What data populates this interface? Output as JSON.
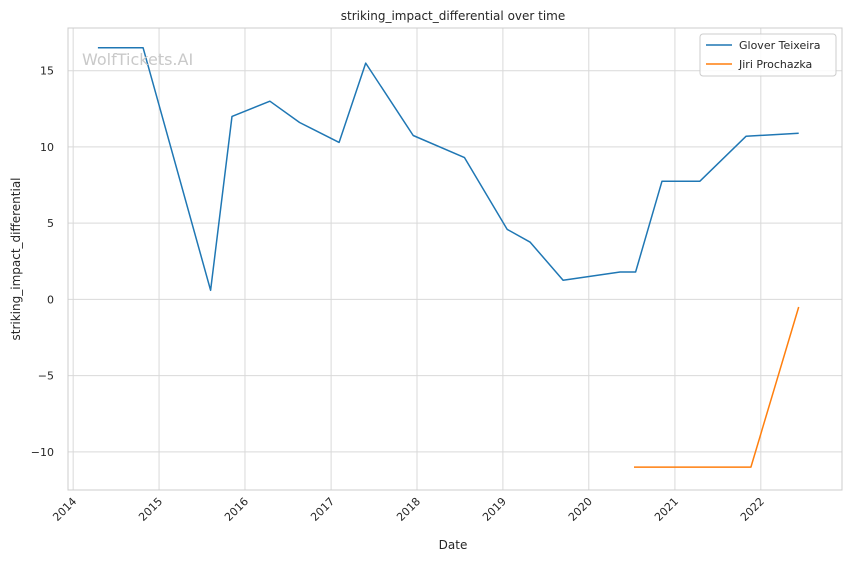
{
  "chart_data": {
    "type": "line",
    "title": "striking_impact_differential over time",
    "xlabel": "Date",
    "ylabel": "striking_impact_differential",
    "x_ticks": [
      "2014",
      "2015",
      "2016",
      "2017",
      "2018",
      "2019",
      "2020",
      "2021",
      "2022"
    ],
    "y_ticks": [
      -10,
      -5,
      0,
      5,
      10,
      15
    ],
    "y_tick_labels": [
      "−10",
      "−5",
      "0",
      "5",
      "10",
      "15"
    ],
    "xlim": [
      "2013-12-10",
      "2022-12-12"
    ],
    "ylim": [
      -12.5,
      17.8
    ],
    "grid": true,
    "legend_position": "top-right",
    "watermark": "WolfTickets.AI",
    "series": [
      {
        "name": "Glover Teixeira",
        "color": "#1f77b4",
        "points": [
          {
            "x": "2014-04-16",
            "y": 16.5
          },
          {
            "x": "2014-10-25",
            "y": 16.5
          },
          {
            "x": "2015-08-08",
            "y": 0.6
          },
          {
            "x": "2015-11-07",
            "y": 12.0
          },
          {
            "x": "2016-04-16",
            "y": 13.0
          },
          {
            "x": "2016-08-20",
            "y": 11.6
          },
          {
            "x": "2017-02-04",
            "y": 10.3
          },
          {
            "x": "2017-05-28",
            "y": 15.5
          },
          {
            "x": "2017-12-16",
            "y": 10.75
          },
          {
            "x": "2018-07-22",
            "y": 9.3
          },
          {
            "x": "2019-01-19",
            "y": 4.6
          },
          {
            "x": "2019-04-27",
            "y": 3.75
          },
          {
            "x": "2019-09-14",
            "y": 1.25
          },
          {
            "x": "2020-05-13",
            "y": 1.8
          },
          {
            "x": "2020-07-18",
            "y": 1.8
          },
          {
            "x": "2020-11-07",
            "y": 7.75
          },
          {
            "x": "2021-04-17",
            "y": 7.75
          },
          {
            "x": "2021-10-30",
            "y": 10.7
          },
          {
            "x": "2022-06-11",
            "y": 10.9
          }
        ]
      },
      {
        "name": "Jiri Prochazka",
        "color": "#ff7f0e",
        "points": [
          {
            "x": "2020-07-11",
            "y": -11.0
          },
          {
            "x": "2021-05-01",
            "y": -11.0
          },
          {
            "x": "2021-11-20",
            "y": -11.0
          },
          {
            "x": "2022-06-11",
            "y": -0.5
          }
        ]
      }
    ]
  }
}
